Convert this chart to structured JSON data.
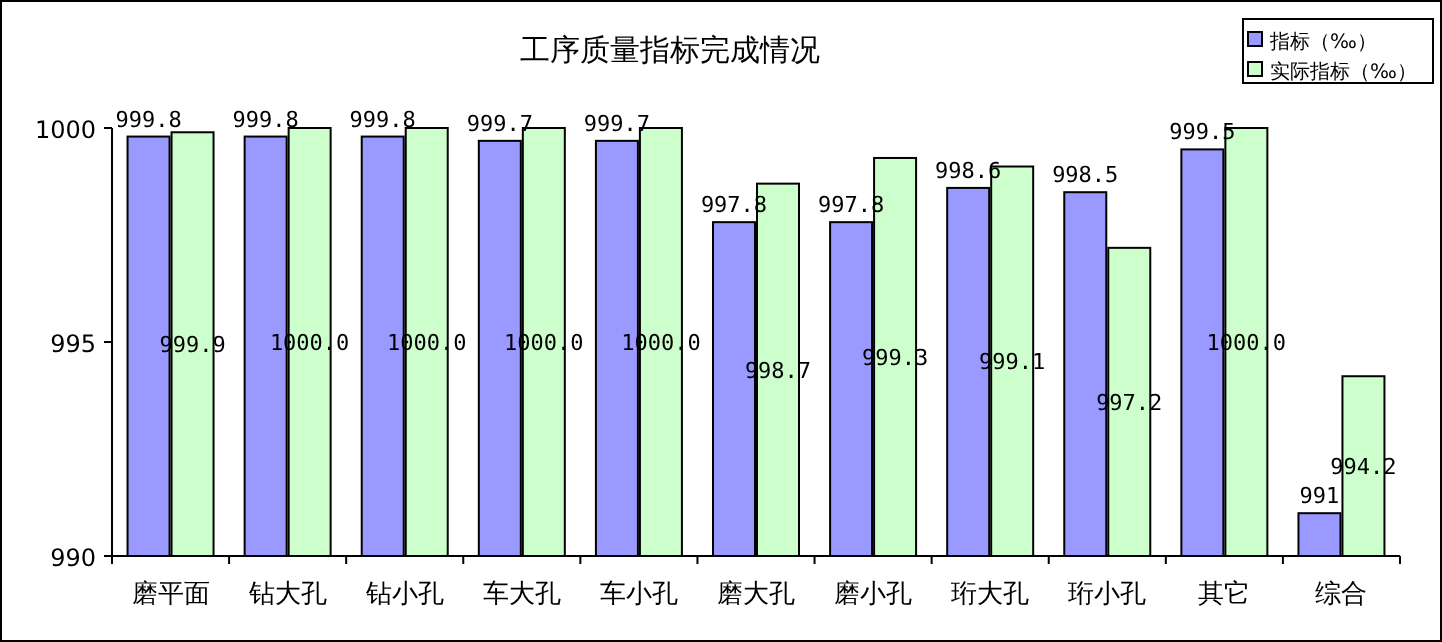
{
  "chart_data": {
    "type": "bar",
    "title": "工序质量指标完成情况",
    "categories": [
      "磨平面",
      "钻大孔",
      "钻小孔",
      "车大孔",
      "车小孔",
      "磨大孔",
      "磨小孔",
      "珩大孔",
      "珩小孔",
      "其它",
      "综合"
    ],
    "series": [
      {
        "name": "指标（‰）",
        "color": "#9999ff",
        "values": [
          999.8,
          999.8,
          999.8,
          999.7,
          999.7,
          997.8,
          997.8,
          998.6,
          998.5,
          999.5,
          991
        ],
        "value_labels": [
          "999.8",
          "999.8",
          "999.8",
          "999.7",
          "999.7",
          "997.8",
          "997.8",
          "998.6",
          "998.5",
          "999.5",
          "991"
        ]
      },
      {
        "name": "实际指标（‰）",
        "color": "#ccffcc",
        "values": [
          999.9,
          1000.0,
          1000.0,
          1000.0,
          1000.0,
          998.7,
          999.3,
          999.1,
          997.2,
          1000.0,
          994.2
        ],
        "value_labels": [
          "999.9",
          "1000.0",
          "1000.0",
          "1000.0",
          "1000.0",
          "998.7",
          "999.3",
          "999.1",
          "997.2",
          "1000.0",
          "994.2"
        ]
      }
    ],
    "ylim": [
      990,
      1000
    ],
    "yticks": [
      990,
      995,
      1000
    ],
    "grid": false,
    "legend": "top right"
  }
}
